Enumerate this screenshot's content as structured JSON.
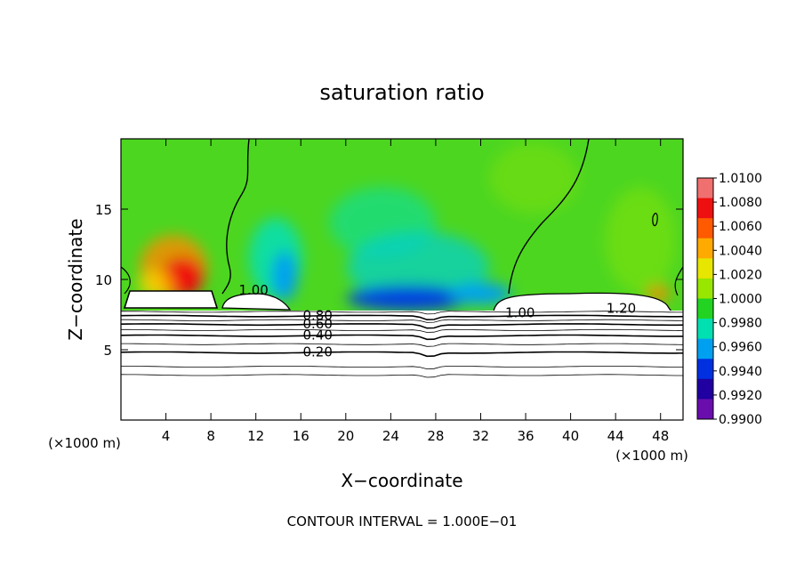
{
  "chart_data": {
    "type": "contour",
    "title": "saturation ratio",
    "xlabel": "X−coordinate",
    "ylabel": "Z−coordinate",
    "x_unit": "(×1000 m)",
    "y_unit": "(×1000 m)",
    "xlim": [
      0,
      50
    ],
    "ylim": [
      0,
      20
    ],
    "x_ticks": [
      4,
      8,
      12,
      16,
      20,
      24,
      28,
      32,
      36,
      40,
      44,
      48
    ],
    "y_ticks": [
      5,
      10,
      15
    ],
    "footer": "CONTOUR INTERVAL = 1.000E−01",
    "colorbar": {
      "levels": [
        "1.0100",
        "1.0080",
        "1.0060",
        "1.0040",
        "1.0020",
        "1.0000",
        "0.9980",
        "0.9960",
        "0.9940",
        "0.9920",
        "0.9900"
      ],
      "colors": [
        "#f07070",
        "#ee1010",
        "#ff5a00",
        "#ffaa00",
        "#e6e600",
        "#99e600",
        "#22d322",
        "#00e0b0",
        "#00a0f0",
        "#0030e0",
        "#2000a0",
        "#6a0dad"
      ]
    },
    "contour_labels": [
      {
        "text": "1.00",
        "x": 11.8,
        "y": 9.3
      },
      {
        "text": "0.80",
        "x": 17.5,
        "y": 7.5
      },
      {
        "text": "0.60",
        "x": 17.5,
        "y": 6.9
      },
      {
        "text": "0.40",
        "x": 17.5,
        "y": 6.1
      },
      {
        "text": "0.20",
        "x": 17.5,
        "y": 4.9
      },
      {
        "text": "1.00",
        "x": 35.5,
        "y": 7.7
      },
      {
        "text": "1.20",
        "x": 44.5,
        "y": 8.0
      }
    ],
    "contour_lines": [
      {
        "level": "0.20",
        "z": 4.8
      },
      {
        "level": "0.40",
        "z": 6.0
      },
      {
        "level": "0.60",
        "z": 6.8
      },
      {
        "level": "0.80",
        "z": 7.4
      }
    ]
  }
}
